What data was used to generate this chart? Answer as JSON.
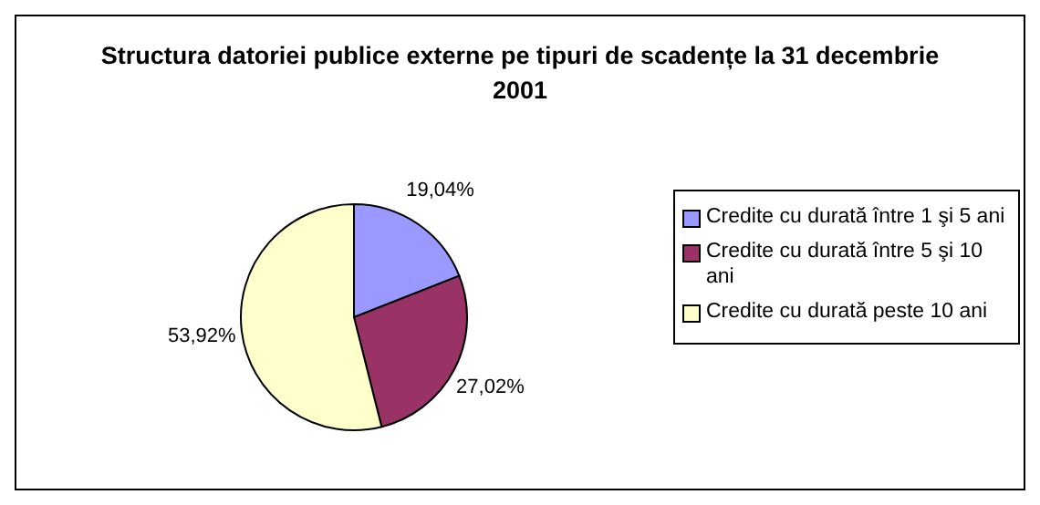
{
  "chart_data": {
    "type": "pie",
    "title": "Structura datoriei publice externe pe tipuri de scadențe la 31 decembrie 2001",
    "categories": [
      "Credite cu durată între 1 şi 5 ani",
      "Credite cu durată între 5 şi 10 ani",
      "Credite cu durată peste 10 ani"
    ],
    "values": [
      19.04,
      27.02,
      53.92
    ],
    "value_labels": [
      "19,04%",
      "27,02%",
      "53,92%"
    ],
    "colors": [
      "#9999ff",
      "#993366",
      "#ffffcc"
    ],
    "legend": "right"
  }
}
